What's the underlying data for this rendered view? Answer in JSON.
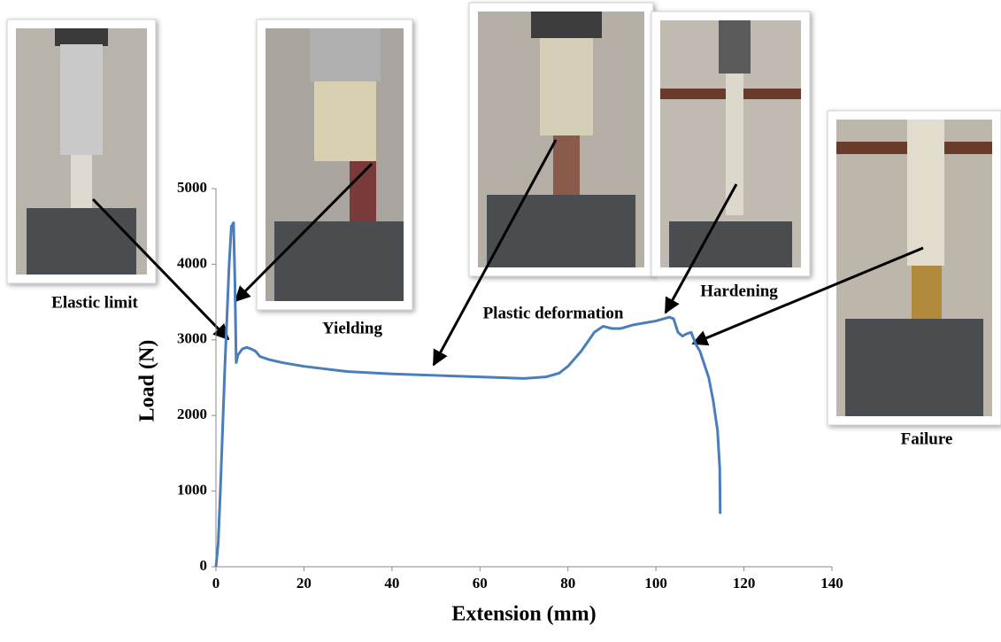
{
  "chart_data": {
    "type": "line",
    "xlabel": "Extension (mm)",
    "ylabel": "Load (N)",
    "xlim": [
      0,
      140
    ],
    "xticks": [
      0,
      20,
      40,
      60,
      80,
      100,
      120,
      140
    ],
    "ylim": [
      0,
      5000
    ],
    "yticks": [
      0,
      1000,
      2000,
      3000,
      4000,
      5000
    ],
    "annotations": [
      "Elastic limit",
      "Yielding",
      "Plastic deformation",
      "Hardening",
      "Failure"
    ],
    "series": [
      {
        "color": "#4a7ebb",
        "x": [
          0,
          0.5,
          1,
          1.5,
          2,
          2.5,
          3,
          3.5,
          4,
          4.3,
          4.6,
          5,
          6,
          7,
          8,
          9,
          10,
          12,
          15,
          20,
          30,
          40,
          50,
          60,
          70,
          75,
          78,
          80,
          83,
          86,
          88,
          90,
          92,
          95,
          100,
          103,
          104,
          105,
          106,
          107,
          108,
          109,
          110,
          112,
          113,
          114,
          114.5,
          114.6
        ],
        "values": [
          0,
          300,
          1000,
          1800,
          2600,
          3300,
          4000,
          4500,
          4550,
          3800,
          2700,
          2800,
          2880,
          2900,
          2880,
          2850,
          2780,
          2740,
          2700,
          2650,
          2580,
          2550,
          2530,
          2510,
          2490,
          2510,
          2560,
          2650,
          2850,
          3100,
          3180,
          3150,
          3150,
          3200,
          3250,
          3300,
          3280,
          3100,
          3050,
          3080,
          3100,
          2950,
          2850,
          2500,
          2200,
          1800,
          1300,
          700
        ]
      }
    ]
  }
}
